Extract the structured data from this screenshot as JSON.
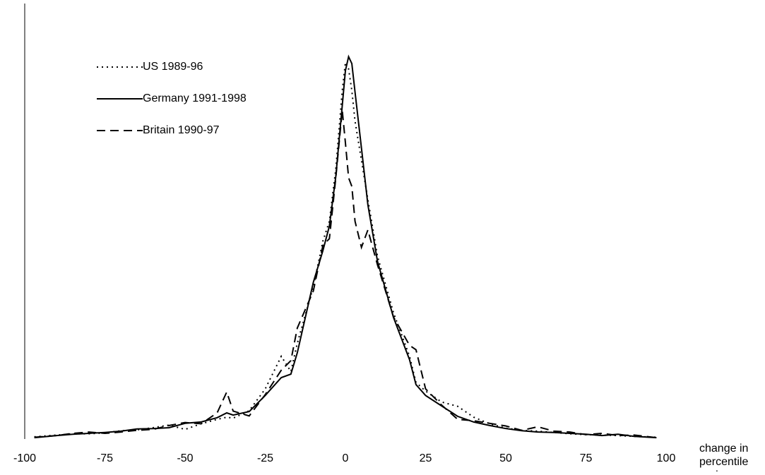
{
  "chart_data": {
    "type": "line",
    "x_label": [
      "change in",
      "percentile",
      "rank"
    ],
    "x": [
      -97,
      -90,
      -85,
      -80,
      -75,
      -70,
      -65,
      -60,
      -55,
      -50,
      -45,
      -40,
      -37,
      -35,
      -30,
      -25,
      -20,
      -17,
      -15,
      -10,
      -7,
      -5,
      -3,
      -1,
      0,
      1,
      2,
      3,
      5,
      7,
      10,
      15,
      20,
      22,
      25,
      30,
      35,
      40,
      45,
      50,
      55,
      60,
      65,
      70,
      75,
      80,
      85,
      90,
      97
    ],
    "xlim": [
      -100,
      100
    ],
    "xticks": [
      -100,
      -75,
      -50,
      -25,
      0,
      25,
      50,
      75,
      100
    ],
    "ylim": [
      0,
      100
    ],
    "series": [
      {
        "name": "US 1989-96",
        "color": "#000000",
        "dash": "dotted",
        "values": [
          0.5,
          0.9,
          1.2,
          1.2,
          1.4,
          1.9,
          2.1,
          2.6,
          3.2,
          2.2,
          3.5,
          4.5,
          5.0,
          4.8,
          6.5,
          11.5,
          19,
          15.5,
          22,
          35,
          45.5,
          50,
          62,
          80,
          86.5,
          85,
          80,
          73,
          64,
          55,
          42,
          29,
          19,
          13,
          11,
          8.5,
          7.5,
          5,
          3.5,
          2.5,
          2,
          1.8,
          1.5,
          1.2,
          1,
          0.9,
          0.8,
          0.6,
          0.4
        ]
      },
      {
        "name": "Germany 1991-1998",
        "color": "#000000",
        "dash": "solid",
        "values": [
          0.3,
          0.8,
          1.1,
          1.3,
          1.5,
          1.8,
          2.3,
          2.4,
          2.6,
          3.6,
          3.9,
          4.9,
          6.0,
          5.5,
          6.3,
          10,
          14.1,
          14.9,
          19.8,
          36,
          43.3,
          48.9,
          60.3,
          76.5,
          84.6,
          87.8,
          86.2,
          79.7,
          66.8,
          53.8,
          40.8,
          27.9,
          18.2,
          12.5,
          10,
          7.6,
          5.2,
          3.9,
          3.1,
          2.4,
          1.9,
          1.6,
          1.5,
          1.3,
          1.1,
          0.8,
          1.1,
          0.6,
          0.3
        ]
      },
      {
        "name": "Britain 1990-97",
        "color": "#000000",
        "dash": "dashed",
        "values": [
          0.4,
          0.8,
          1.3,
          1.6,
          1.3,
          1.6,
          2.0,
          2.2,
          3.1,
          3.8,
          3.5,
          6.0,
          10.8,
          6.4,
          5.3,
          10.2,
          15.8,
          18,
          25.5,
          34,
          44.5,
          46,
          60,
          75.5,
          68,
          60,
          58,
          50,
          44,
          48,
          40,
          28,
          21.5,
          20.5,
          11.5,
          7.8,
          4.5,
          4.2,
          3.6,
          3.0,
          2.0,
          2.8,
          1.8,
          1.6,
          1.0,
          1.3,
          0.8,
          0.9,
          0.3
        ]
      }
    ]
  }
}
